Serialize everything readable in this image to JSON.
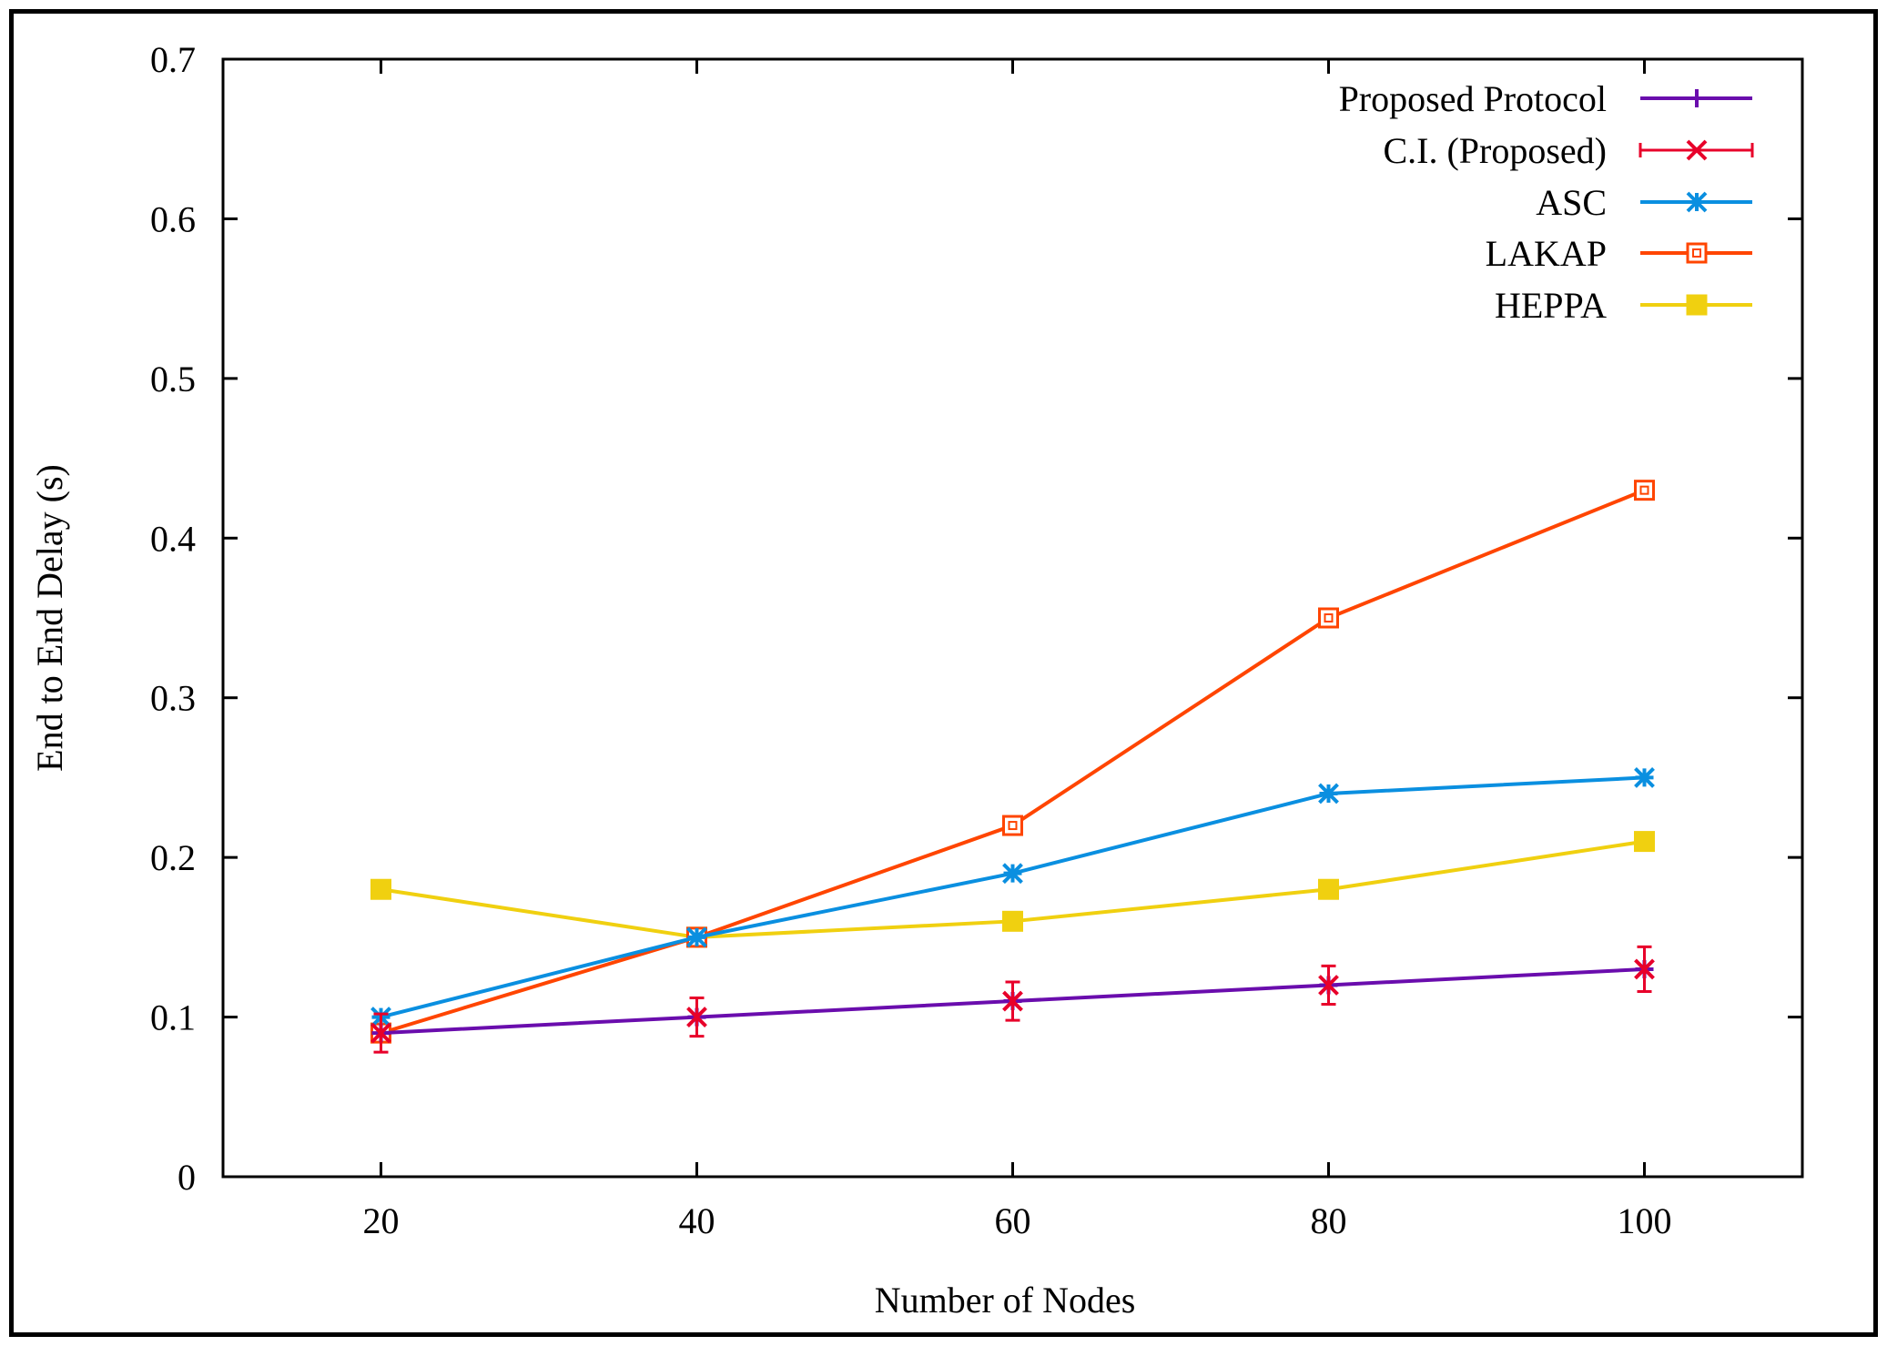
{
  "chart_data": {
    "type": "line",
    "title": "",
    "xlabel": "Number of Nodes",
    "ylabel": "End to End Delay (s)",
    "categories": [
      20,
      40,
      60,
      80,
      100
    ],
    "xlim": [
      10,
      110
    ],
    "ylim": [
      0,
      0.7
    ],
    "xticks": [
      "20",
      "40",
      "60",
      "80",
      "100"
    ],
    "yticks": [
      "0",
      "0.1",
      "0.2",
      "0.3",
      "0.4",
      "0.5",
      "0.6",
      "0.7"
    ],
    "ytick_values": [
      0,
      0.1,
      0.2,
      0.3,
      0.4,
      0.5,
      0.6,
      0.7
    ],
    "grid": false,
    "legend_position": "top-right",
    "series": [
      {
        "name": "Proposed Protocol",
        "color": "#6a0dad",
        "marker": "plus",
        "values": [
          0.09,
          0.1,
          0.11,
          0.12,
          0.13
        ]
      },
      {
        "name": "C.I. (Proposed)",
        "color": "#e8002a",
        "marker": "cross",
        "errorbars": true,
        "values": [
          0.09,
          0.1,
          0.11,
          0.12,
          0.13
        ],
        "error": [
          0.012,
          0.012,
          0.012,
          0.012,
          0.014
        ]
      },
      {
        "name": "ASC",
        "color": "#0a8fe0",
        "marker": "star",
        "values": [
          0.1,
          0.15,
          0.19,
          0.24,
          0.25
        ]
      },
      {
        "name": "LAKAP",
        "color": "#ff4500",
        "marker": "open-square",
        "values": [
          0.09,
          0.15,
          0.22,
          0.35,
          0.43
        ]
      },
      {
        "name": "HEPPA",
        "color": "#f0d010",
        "marker": "filled-square",
        "values": [
          0.18,
          0.15,
          0.16,
          0.18,
          0.21
        ]
      }
    ]
  }
}
